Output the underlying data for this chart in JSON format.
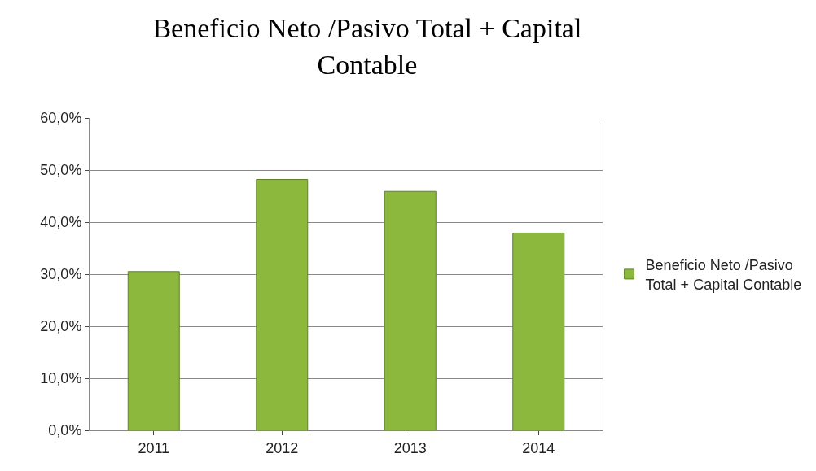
{
  "chart_data": {
    "type": "bar",
    "title": "Beneficio Neto /Pasivo Total + Capital Contable",
    "categories": [
      "2011",
      "2012",
      "2013",
      "2014"
    ],
    "series": [
      {
        "name": "Beneficio Neto /Pasivo Total + Capital Contable",
        "color": "#8db83e",
        "values": [
          30.5,
          48.2,
          45.9,
          37.9
        ]
      }
    ],
    "ylim": [
      0,
      60
    ],
    "yticks": [
      {
        "value": 0,
        "label": "0,0%"
      },
      {
        "value": 10,
        "label": "10,0%"
      },
      {
        "value": 20,
        "label": "20,0%"
      },
      {
        "value": 30,
        "label": "30,0%"
      },
      {
        "value": 40,
        "label": "40,0%"
      },
      {
        "value": 50,
        "label": "50,0%"
      },
      {
        "value": 60,
        "label": "60,0%"
      }
    ],
    "grid": "y",
    "legend": "right"
  }
}
